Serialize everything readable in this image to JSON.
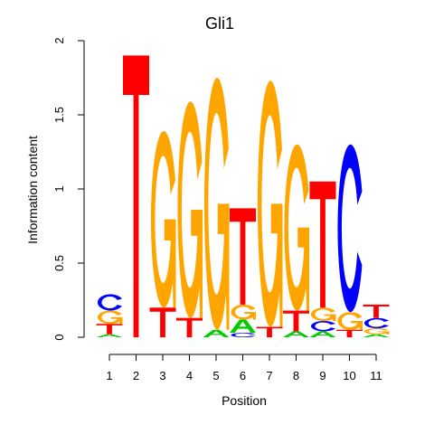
{
  "chart_data": {
    "type": "sequence-logo",
    "title": "Gli1",
    "xlabel": "Position",
    "ylabel": "Information content",
    "ylim": [
      0,
      2
    ],
    "y_ticks": [
      {
        "value": 0,
        "label": "0"
      },
      {
        "value": 0.5,
        "label": "0.5"
      },
      {
        "value": 1,
        "label": "1"
      },
      {
        "value": 1.5,
        "label": "1.5"
      },
      {
        "value": 2,
        "label": "2"
      }
    ],
    "positions": [
      {
        "label": "1",
        "stack": [
          {
            "letter": "A",
            "height": 0.02
          },
          {
            "letter": "T",
            "height": 0.07
          },
          {
            "letter": "G",
            "height": 0.09
          },
          {
            "letter": "C",
            "height": 0.11
          }
        ]
      },
      {
        "label": "2",
        "stack": [
          {
            "letter": "T",
            "height": 1.9
          }
        ]
      },
      {
        "label": "3",
        "stack": [
          {
            "letter": "T",
            "height": 0.2
          },
          {
            "letter": "G",
            "height": 1.19
          }
        ]
      },
      {
        "label": "4",
        "stack": [
          {
            "letter": "T",
            "height": 0.13
          },
          {
            "letter": "G",
            "height": 1.46
          }
        ]
      },
      {
        "label": "5",
        "stack": [
          {
            "letter": "A",
            "height": 0.05
          },
          {
            "letter": "G",
            "height": 1.7
          }
        ]
      },
      {
        "label": "6",
        "stack": [
          {
            "letter": "C",
            "height": 0.03
          },
          {
            "letter": "A",
            "height": 0.09
          },
          {
            "letter": "G",
            "height": 0.1
          },
          {
            "letter": "T",
            "height": 0.65
          }
        ]
      },
      {
        "label": "7",
        "stack": [
          {
            "letter": "T",
            "height": 0.07
          },
          {
            "letter": "G",
            "height": 1.66
          }
        ]
      },
      {
        "label": "8",
        "stack": [
          {
            "letter": "A",
            "height": 0.04
          },
          {
            "letter": "T",
            "height": 0.14
          },
          {
            "letter": "G",
            "height": 1.12
          }
        ]
      },
      {
        "label": "9",
        "stack": [
          {
            "letter": "A",
            "height": 0.04
          },
          {
            "letter": "C",
            "height": 0.07
          },
          {
            "letter": "G",
            "height": 0.09
          },
          {
            "letter": "T",
            "height": 0.85
          }
        ]
      },
      {
        "label": "10",
        "stack": [
          {
            "letter": "T",
            "height": 0.05
          },
          {
            "letter": "G",
            "height": 0.12
          },
          {
            "letter": "C",
            "height": 1.13
          }
        ]
      },
      {
        "label": "11",
        "stack": [
          {
            "letter": "A",
            "height": 0.02
          },
          {
            "letter": "G",
            "height": 0.04
          },
          {
            "letter": "C",
            "height": 0.07
          },
          {
            "letter": "T",
            "height": 0.09
          }
        ]
      }
    ]
  },
  "colors": {
    "A": "#00cc00",
    "C": "#0000ff",
    "G": "#ffa500",
    "T": "#ff0000",
    "axis": "#000000"
  }
}
